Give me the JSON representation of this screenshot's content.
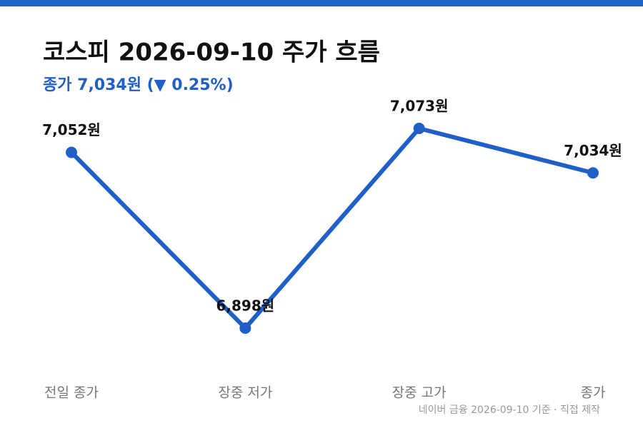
{
  "chart_data": {
    "type": "line",
    "title": "코스피 2026-09-10 주가 흐름",
    "subtitle": "종가 7,034원 (▼ 0.25%)",
    "source": "네이버 금융 2026-09-10 기준 · 직접 제작",
    "categories": [
      "전일 종가",
      "장중 저가",
      "장중 고가",
      "종가"
    ],
    "values": [
      7052,
      6898,
      7073,
      7034
    ],
    "value_labels": [
      "7,052원",
      "6,898원",
      "7,073원",
      "7,034원"
    ],
    "color": "#1f5fc8"
  }
}
